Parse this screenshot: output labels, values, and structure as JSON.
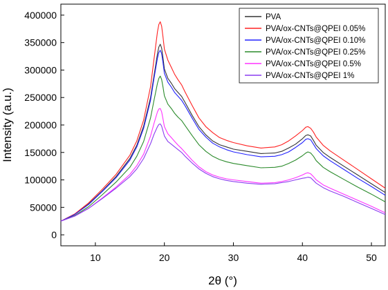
{
  "chart_data": {
    "type": "line",
    "xlabel": "2θ (°)",
    "ylabel": "Intensity (a.u.)",
    "xlim": [
      5,
      52
    ],
    "ylim": [
      -20000,
      420000
    ],
    "xticks": [
      10,
      20,
      30,
      40,
      50
    ],
    "xtick_labels": [
      "10",
      "20",
      "30",
      "40",
      "50"
    ],
    "yticks": [
      0,
      50000,
      100000,
      150000,
      200000,
      250000,
      300000,
      350000,
      400000
    ],
    "ytick_labels": [
      "0",
      "50000",
      "100000",
      "150000",
      "200000",
      "250000",
      "300000",
      "350000",
      "400000"
    ],
    "legend_position": "top-right",
    "grid": false,
    "x": [
      5,
      7,
      9,
      11,
      13,
      15,
      16,
      17,
      18,
      18.5,
      19,
      19.2,
      19.4,
      19.6,
      19.8,
      20,
      20.5,
      21,
      21.5,
      22,
      22.5,
      23,
      24,
      25,
      26,
      27,
      28,
      29,
      30,
      32,
      34,
      36,
      37,
      38,
      39,
      40,
      40.5,
      40.8,
      41.2,
      41.6,
      42,
      43,
      44,
      46,
      48,
      50,
      52
    ],
    "series": [
      {
        "name": "PVA",
        "color": "#333333",
        "values": [
          25000,
          37000,
          56000,
          80000,
          106000,
          139000,
          163000,
          198000,
          250000,
          290000,
          330000,
          342000,
          347000,
          340000,
          322000,
          302000,
          285000,
          276000,
          266000,
          259000,
          252000,
          241000,
          218000,
          197000,
          182000,
          171000,
          164000,
          160000,
          156000,
          152000,
          148000,
          149000,
          152000,
          158000,
          165000,
          175000,
          181000,
          182000,
          180000,
          172000,
          163000,
          150000,
          141000,
          125000,
          109000,
          93000,
          77000
        ]
      },
      {
        "name": "PVA/ox-CNTs@QPEI 0.05%",
        "color": "#ff2020",
        "values": [
          25000,
          38000,
          58000,
          83000,
          110000,
          145000,
          171000,
          209000,
          270000,
          320000,
          370000,
          383000,
          388000,
          380000,
          360000,
          338000,
          318000,
          305000,
          292000,
          282000,
          273000,
          260000,
          236000,
          213000,
          197000,
          186000,
          177000,
          172000,
          168000,
          162000,
          158000,
          160000,
          164000,
          171000,
          180000,
          190000,
          196000,
          197000,
          194000,
          187000,
          178000,
          163000,
          153000,
          136000,
          119000,
          102000,
          85000
        ]
      },
      {
        "name": "PVA/ox-CNTs@QPEI 0.10%",
        "color": "#2020ff",
        "values": [
          25000,
          37000,
          55000,
          79000,
          104000,
          136000,
          160000,
          194000,
          245000,
          285000,
          322000,
          332000,
          336000,
          330000,
          313000,
          294000,
          278000,
          269000,
          259000,
          252000,
          245000,
          235000,
          213000,
          192000,
          178000,
          167000,
          160000,
          155000,
          151000,
          146000,
          142000,
          143000,
          146000,
          151000,
          159000,
          168000,
          174000,
          175000,
          173000,
          165000,
          157000,
          144000,
          135000,
          119000,
          103000,
          88000,
          72000
        ]
      },
      {
        "name": "PVA/ox-CNTs@QPEI 0.25%",
        "color": "#2a8a2a",
        "values": [
          25000,
          35000,
          51000,
          73000,
          96000,
          123000,
          143000,
          170000,
          213000,
          245000,
          276000,
          285000,
          289000,
          283000,
          269000,
          253000,
          238000,
          230000,
          221000,
          214000,
          208000,
          199000,
          181000,
          164000,
          152000,
          143000,
          137000,
          133000,
          130000,
          126000,
          122000,
          123000,
          125000,
          130000,
          136000,
          144000,
          149000,
          151000,
          149000,
          143000,
          135000,
          123000,
          115000,
          101000,
          87000,
          74000,
          60000
        ]
      },
      {
        "name": "PVA/ox-CNTs@QPEI 0.5%",
        "color": "#ff30ff",
        "values": [
          25000,
          34000,
          48000,
          67000,
          87000,
          110000,
          126000,
          147000,
          180000,
          203000,
          224000,
          229000,
          230000,
          224000,
          211000,
          197000,
          184000,
          177000,
          170000,
          163000,
          157000,
          150000,
          136000,
          124000,
          115000,
          109000,
          105000,
          102000,
          100000,
          97000,
          94000,
          95000,
          97000,
          100000,
          104000,
          109000,
          112000,
          113000,
          111000,
          106000,
          100000,
          91000,
          85000,
          74000,
          63000,
          52000,
          40000
        ]
      },
      {
        "name": "PVA/ox-CNTs@QPEI 1%",
        "color": "#8a3cf0",
        "values": [
          25000,
          34000,
          48000,
          66000,
          85000,
          106000,
          120000,
          139000,
          166000,
          183000,
          197000,
          201000,
          202000,
          198000,
          189000,
          180000,
          170000,
          165000,
          160000,
          155000,
          150000,
          143000,
          131000,
          120000,
          112000,
          106000,
          102000,
          99000,
          97000,
          94000,
          92000,
          93000,
          95000,
          97000,
          100000,
          103000,
          104000,
          105000,
          104000,
          99000,
          94000,
          86000,
          80000,
          70000,
          59000,
          48000,
          37000
        ]
      }
    ]
  }
}
